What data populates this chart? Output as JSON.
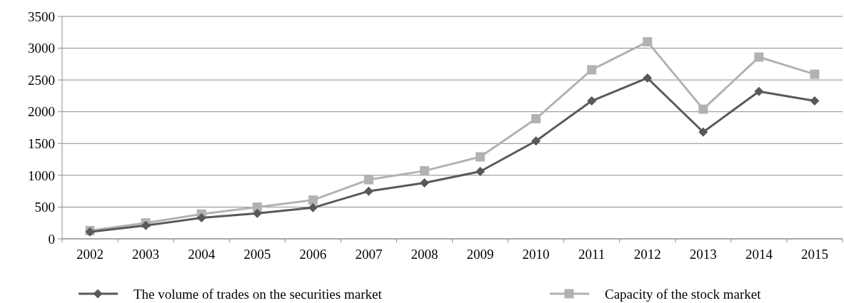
{
  "chart_data": {
    "type": "line",
    "categories": [
      "2002",
      "2003",
      "2004",
      "2005",
      "2006",
      "2007",
      "2008",
      "2009",
      "2010",
      "2011",
      "2012",
      "2013",
      "2014",
      "2015"
    ],
    "series": [
      {
        "name": "The volume of trades on the securities market",
        "color": "#595959",
        "marker": "diamond",
        "values": [
          110,
          210,
          330,
          400,
          490,
          750,
          880,
          1060,
          1540,
          2170,
          2530,
          1680,
          2320,
          2170
        ]
      },
      {
        "name": "Capacity of the stock market",
        "color": "#b2b2b2",
        "marker": "square",
        "values": [
          130,
          250,
          390,
          500,
          610,
          930,
          1070,
          1290,
          1890,
          2660,
          3100,
          2040,
          2860,
          2590
        ]
      }
    ],
    "ylim": [
      0,
      3500
    ],
    "yticks": [
      0,
      500,
      1000,
      1500,
      2000,
      2500,
      3000,
      3500
    ],
    "grid": "y",
    "legend": "bottom",
    "line_style": "solid"
  }
}
